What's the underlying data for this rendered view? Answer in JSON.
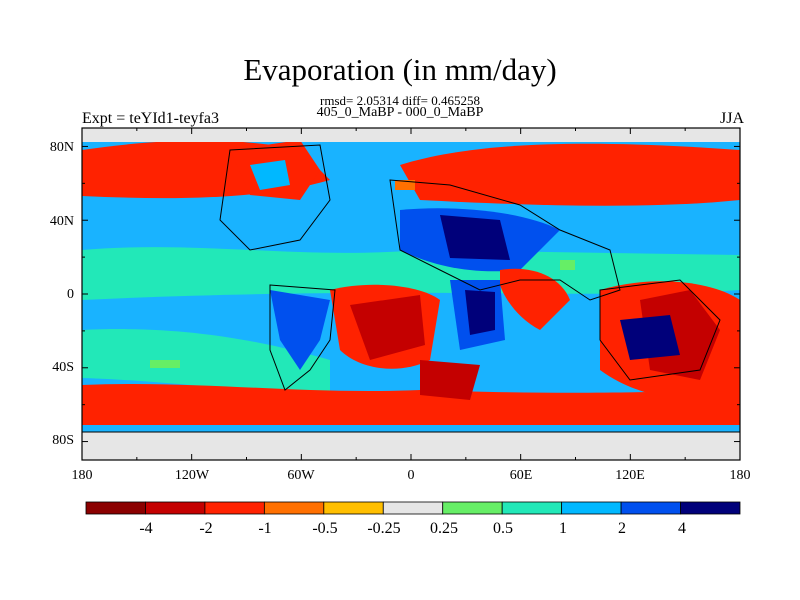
{
  "title": "Evaporation (in mm/day)",
  "stats_line": "rmsd= 2.05314 diff= 0.465258",
  "subtitle": "405_0_MaBP - 000_0_MaBP",
  "experiment_label": "Expt = teYId1-teyfa3",
  "season": "JJA",
  "axes": {
    "lat_ticks": [
      "80N",
      "40N",
      "0",
      "40S",
      "80S"
    ],
    "lon_ticks": [
      "180",
      "120W",
      "60W",
      "0",
      "60E",
      "120E",
      "180"
    ]
  },
  "colorbar": {
    "colors": [
      "#8b0000",
      "#c40000",
      "#ff2200",
      "#ff7000",
      "#ffbf00",
      "#e6e6e6",
      "#66ee66",
      "#22e8b8",
      "#00b8ff",
      "#0050ee",
      "#00007a"
    ],
    "labels": [
      "-4",
      "-2",
      "-1",
      "-0.5",
      "-0.25",
      "0.25",
      "0.5",
      "1",
      "2",
      "4"
    ]
  },
  "palette": {
    "ocean_blue": "#19b3ff",
    "teal": "#22e8b8",
    "red": "#ff2200",
    "dark_red": "#c40000",
    "navy": "#00007a",
    "blue": "#0050ee",
    "grey": "#e6e6e6",
    "orange": "#ff7000",
    "green": "#66ee66"
  }
}
